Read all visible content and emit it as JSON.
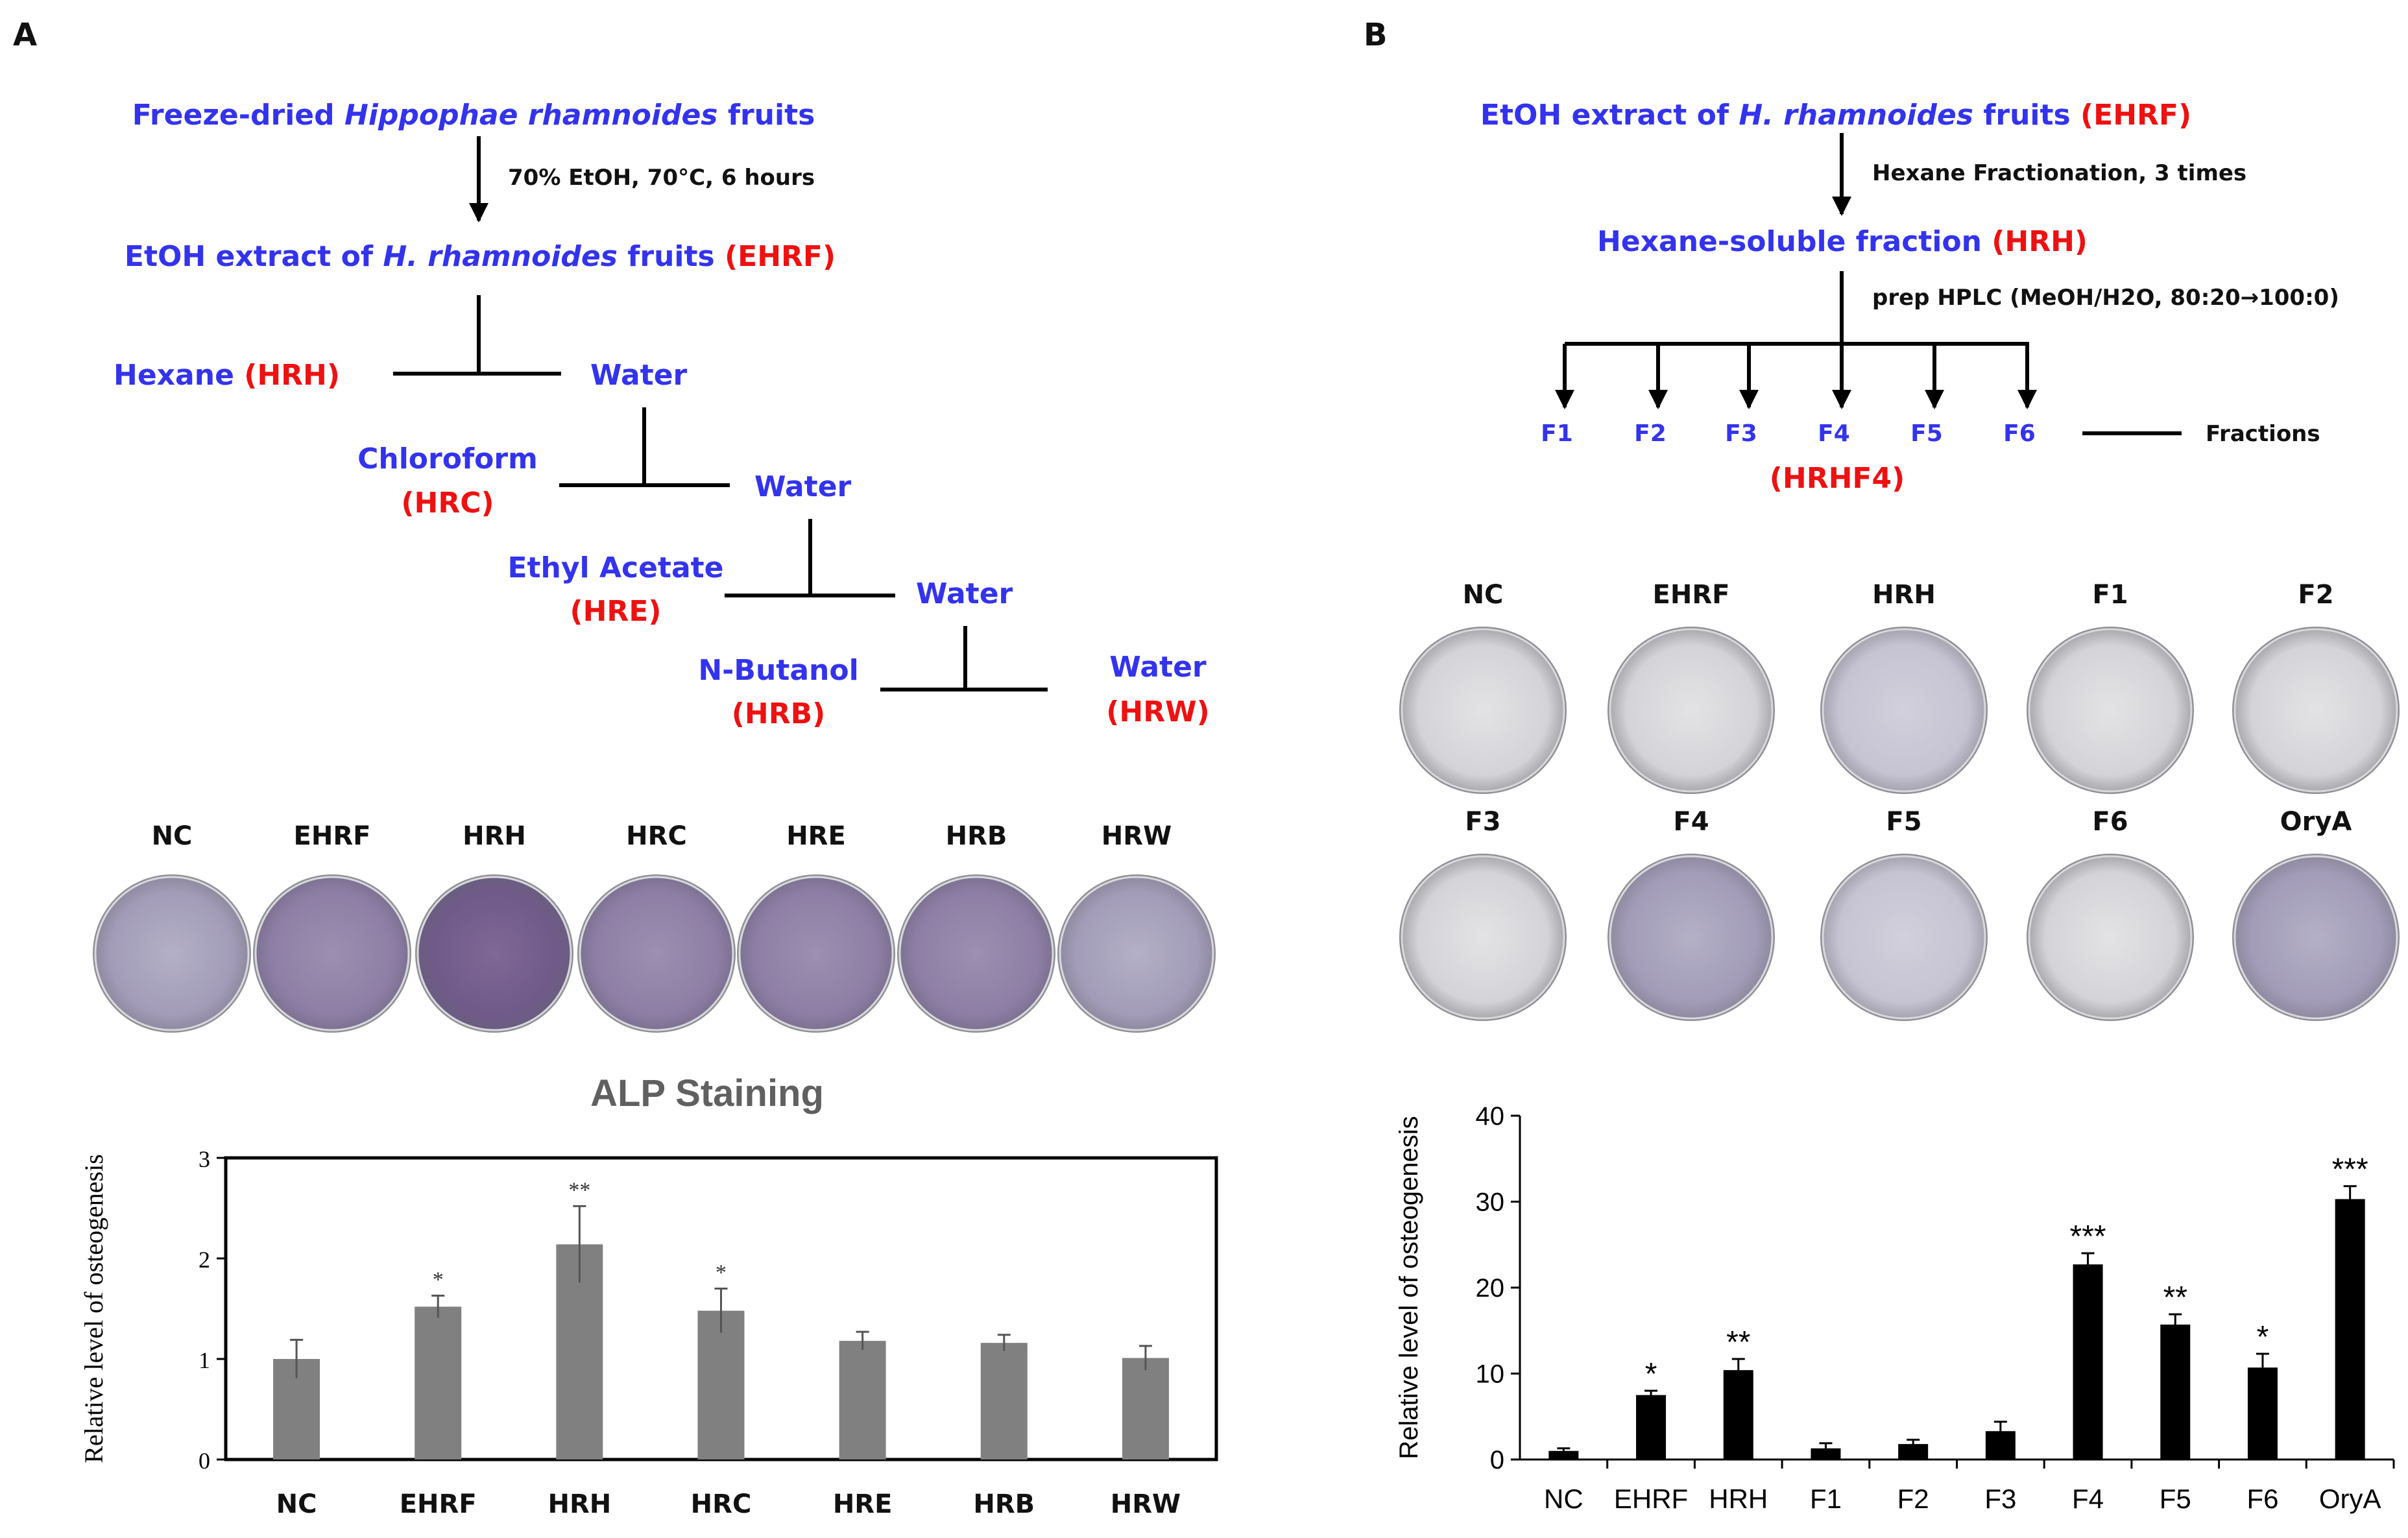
{
  "panel_a": {
    "letter": "A",
    "top_pre": "Freeze-dried ",
    "top_italic": "Hippophae rhamnoides",
    "top_post": " fruits",
    "condition": "70% EtOH, 70°C, 6 hours",
    "extract_pre": "EtOH extract of ",
    "extract_italic": "H. rhamnoides",
    "extract_post": " fruits ",
    "extract_abbr": "(EHRF)",
    "hexane": "Hexane ",
    "hexane_abbr": "(HRH)",
    "water": "Water",
    "chloroform": "Chloroform",
    "chloroform_abbr": "(HRC)",
    "ethyl_acetate": "Ethyl Acetate",
    "ethyl_acetate_abbr": "(HRE)",
    "butanol": "N-Butanol",
    "butanol_abbr": "(HRB)",
    "water_abbr": "(HRW)",
    "plate_labels": [
      "NC",
      "EHRF",
      "HRH",
      "HRC",
      "HRE",
      "HRB",
      "HRW"
    ]
  },
  "panel_b": {
    "letter": "B",
    "top_pre": "EtOH extract of ",
    "top_italic": "H. rhamnoides",
    "top_post": " fruits ",
    "top_abbr": "(EHRF)",
    "step1": "Hexane Fractionation, 3 times",
    "hexane_fraction": "Hexane-soluble fraction ",
    "hexane_fraction_abbr": "(HRH)",
    "step2": "prep HPLC (MeOH/H2O, 80:20→100:0)",
    "fractions": [
      "F1",
      "F2",
      "F3",
      "F4",
      "F5",
      "F6"
    ],
    "fractions_label": "Fractions",
    "active_fraction": "(HRHF4)",
    "plate_labels_row1": [
      "NC",
      "EHRF",
      "HRH",
      "F1",
      "F2"
    ],
    "plate_labels_row2": [
      "F3",
      "F4",
      "F5",
      "F6",
      "OryA"
    ]
  },
  "colors": {
    "blue": "#3333ee",
    "red": "#ee1111",
    "bar_a": "#808080",
    "bar_b": "#000000"
  },
  "chart_data": [
    {
      "type": "bar",
      "title": "ALP Staining",
      "categories": [
        "NC",
        "EHRF",
        "HRH",
        "HRC",
        "HRE",
        "HRB",
        "HRW"
      ],
      "values": [
        1.0,
        1.52,
        2.14,
        1.48,
        1.18,
        1.16,
        1.01
      ],
      "errors": [
        0.19,
        0.11,
        0.38,
        0.22,
        0.09,
        0.08,
        0.12
      ],
      "significance": [
        "",
        "*",
        "**",
        "*",
        "",
        "",
        ""
      ],
      "ylabel": "Relative level of osteogenesis",
      "xlabel": "",
      "ylim": [
        0,
        3
      ],
      "yticks": [
        "0",
        "1",
        "2",
        "3"
      ]
    },
    {
      "type": "bar",
      "title": "",
      "categories": [
        "NC",
        "EHRF",
        "HRH",
        "F1",
        "F2",
        "F3",
        "F4",
        "F5",
        "F6",
        "OryA"
      ],
      "values": [
        1.0,
        7.5,
        10.4,
        1.3,
        1.8,
        3.3,
        22.7,
        15.7,
        10.7,
        30.3
      ],
      "errors": [
        0.3,
        0.5,
        1.3,
        0.6,
        0.5,
        1.1,
        1.3,
        1.2,
        1.6,
        1.5
      ],
      "significance": [
        "",
        "*",
        "**",
        "",
        "",
        "",
        "***",
        "**",
        "*",
        "***"
      ],
      "ylabel": "Relative level of osteogenesis",
      "xlabel": "",
      "ylim": [
        0,
        40
      ],
      "yticks": [
        "0",
        "10",
        "20",
        "30",
        "40"
      ]
    }
  ]
}
